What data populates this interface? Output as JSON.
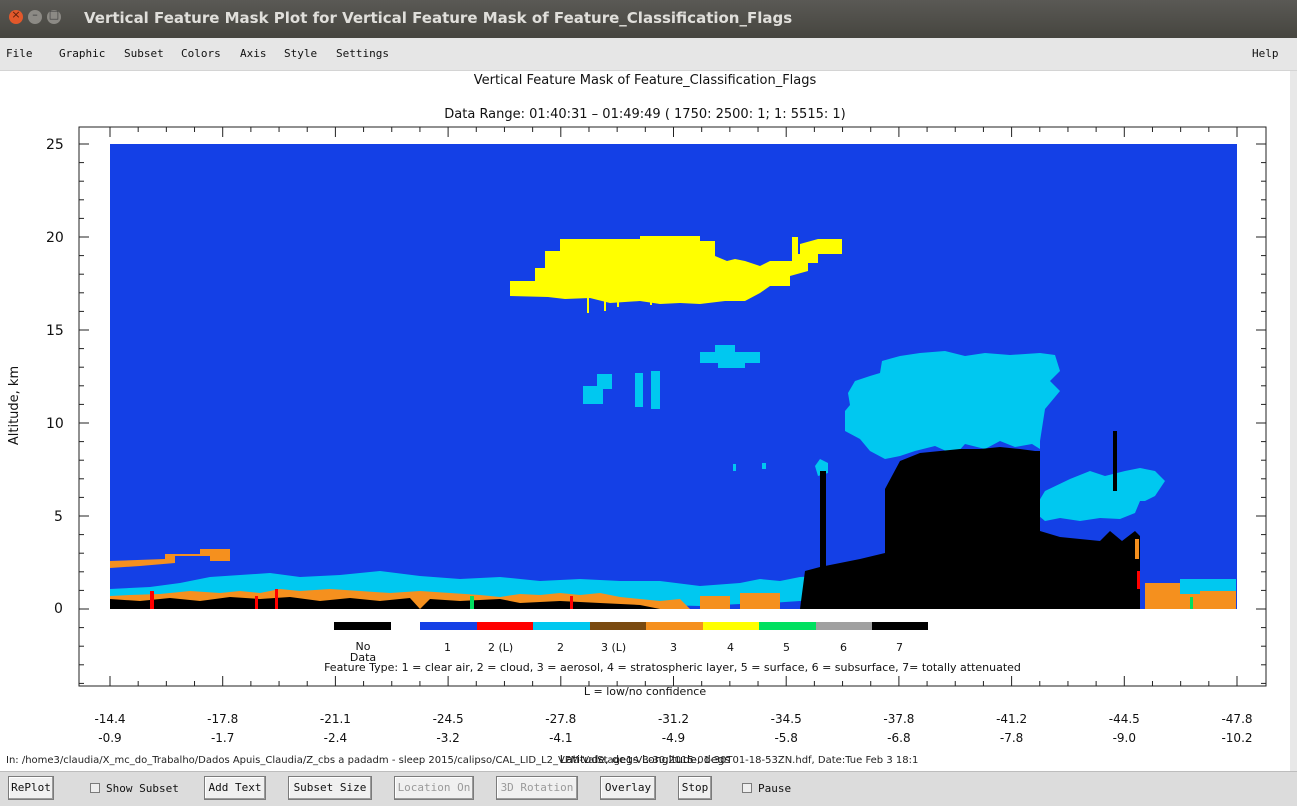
{
  "window": {
    "title": "Vertical Feature Mask Plot for Vertical Feature Mask of Feature_Classification_Flags",
    "close_glyph": "×",
    "min_glyph": "–",
    "max_glyph": "□"
  },
  "menu": {
    "items": [
      "File",
      "Graphic",
      "Subset",
      "Colors",
      "Axis",
      "Style",
      "Settings"
    ],
    "help": "Help"
  },
  "plot": {
    "title": "Vertical Feature Mask of Feature_Classification_Flags",
    "subtitle": "Data Range: 01:40:31 – 01:49:49 ( 1750: 2500: 1; 1: 5515: 1)",
    "ylabel": "Altitude, km",
    "xlabel": "Latitude, degs Longitude, degs",
    "file_path": "In: /home3/claudia/X_mc_do_Trabalho/Dados Apuis_Claudia/Z_cbs a padadm - sleep 2015/calipso/CAL_LID_L2_VFM-ValStage1-V3-30.2015-01-30T01-18-53ZN.hdf, Date:Tue Feb 3 18:1"
  },
  "chart_data": {
    "type": "heatmap",
    "title": "Vertical Feature Mask of Feature_Classification_Flags",
    "ylabel": "Altitude, km",
    "xlabel": "Latitude, degs Longitude, degs",
    "ylim": [
      -5,
      26
    ],
    "yticks": [
      0,
      5,
      10,
      15,
      20,
      25
    ],
    "x_ticks_lat": [
      "-14.4",
      "-17.8",
      "-21.1",
      "-24.5",
      "-27.8",
      "-31.2",
      "-34.5",
      "-37.8",
      "-41.2",
      "-44.5",
      "-47.8"
    ],
    "x_ticks_lon": [
      "-0.9",
      "-1.7",
      "-2.4",
      "-3.2",
      "-4.1",
      "-4.9",
      "-5.8",
      "-6.8",
      "-7.8",
      "-9.0",
      "-10.2"
    ],
    "legend": {
      "entries": [
        {
          "label": "No Data",
          "color": "#000000"
        },
        {
          "label": "1",
          "color": "#1440e6"
        },
        {
          "label": "2 (L)",
          "color": "#ff0000"
        },
        {
          "label": "2",
          "color": "#00c8f0"
        },
        {
          "label": "3 (L)",
          "color": "#7a4a10"
        },
        {
          "label": "3",
          "color": "#f5901e"
        },
        {
          "label": "4",
          "color": "#ffff00"
        },
        {
          "label": "5",
          "color": "#00e060"
        },
        {
          "label": "6",
          "color": "#a0a0a0"
        },
        {
          "label": "7",
          "color": "#000000"
        }
      ],
      "feature_type_text": "Feature Type: 1 = clear air, 2 = cloud, 3 = aerosol, 4 = stratospheric layer, 5 = surface, 6 = subsurface, 7= totally attenuated",
      "low_conf_text": "L = low/no confidence"
    }
  },
  "toolbar": {
    "replot": "RePlot",
    "show_subset": "Show Subset",
    "add_text": "Add Text",
    "subset_size": "Subset Size",
    "location_on": "Location On",
    "rotation_3d": "3D Rotation",
    "overlay": "Overlay",
    "stop": "Stop",
    "pause": "Pause"
  }
}
